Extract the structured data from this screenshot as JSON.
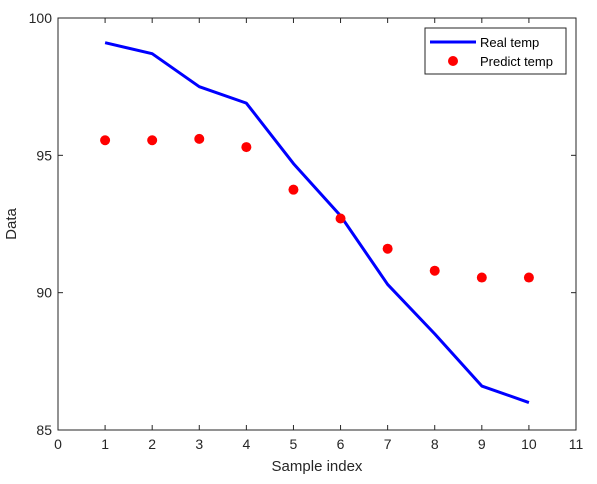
{
  "chart_data": {
    "type": "line",
    "xlabel": "Sample index",
    "ylabel": "Data",
    "xlim": [
      0,
      11
    ],
    "ylim": [
      85,
      100
    ],
    "xticks": [
      0,
      1,
      2,
      3,
      4,
      5,
      6,
      7,
      8,
      9,
      10,
      11
    ],
    "yticks": [
      85,
      90,
      95,
      100
    ],
    "grid": false,
    "legend_position": "top-right",
    "x": [
      1,
      2,
      3,
      4,
      5,
      6,
      7,
      8,
      9,
      10
    ],
    "series": [
      {
        "name": "Real temp",
        "style": "line",
        "color": "#0000ff",
        "values": [
          99.1,
          98.7,
          97.5,
          96.9,
          94.7,
          92.8,
          90.3,
          88.5,
          86.6,
          86.0
        ]
      },
      {
        "name": "Predict temp",
        "style": "marker",
        "color": "#ff0000",
        "values": [
          95.55,
          95.55,
          95.6,
          95.3,
          93.75,
          92.7,
          91.6,
          90.8,
          90.55,
          90.55
        ]
      }
    ]
  }
}
